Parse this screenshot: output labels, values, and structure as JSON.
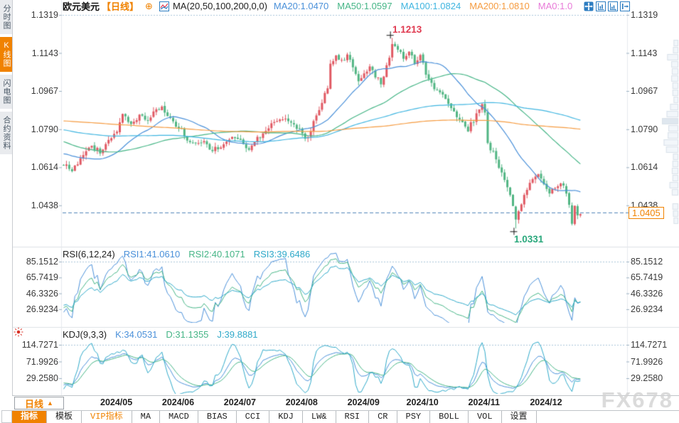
{
  "header": {
    "symbol": "欧元美元",
    "period": "【日线】",
    "plus_icon": "⊕",
    "ma_title": "MA(20,50,100,200,0,0)",
    "ma_items": [
      {
        "label": "MA20:1.0470",
        "color": "#4a90d9"
      },
      {
        "label": "MA50:1.0597",
        "color": "#45b586"
      },
      {
        "label": "MA100:1.0824",
        "color": "#3fb5e0"
      },
      {
        "label": "MA200:1.0810",
        "color": "#f59b40"
      },
      {
        "label": "MA0:1.0",
        "color": "#e87ad8"
      }
    ]
  },
  "sidebar": {
    "tabs": [
      {
        "label": "分时图",
        "active": false
      },
      {
        "label": "K线图",
        "active": true
      },
      {
        "label": "闪电图",
        "active": false
      },
      {
        "label": "合约资料",
        "active": false
      }
    ]
  },
  "price_axis": {
    "ticks": [
      "1.1319",
      "1.1143",
      "1.0967",
      "1.0790",
      "1.0614",
      "1.0438"
    ],
    "current": "1.0405"
  },
  "annotations": {
    "high": "1.1213",
    "low": "1.0331"
  },
  "rsi_panel": {
    "title": "RSI(6,12,24)",
    "values": [
      {
        "label": "RSI1:41.0610",
        "color": "#4a90d9"
      },
      {
        "label": "RSI2:40.1071",
        "color": "#45b586"
      },
      {
        "label": "RSI3:39.6486",
        "color": "#2fa9c9"
      }
    ],
    "ticks": [
      "85.1512",
      "65.7419",
      "46.3326",
      "26.9234"
    ]
  },
  "kdj_panel": {
    "title": "KDJ(9,3,3)",
    "values": [
      {
        "label": "K:34.0531",
        "color": "#4a90d9"
      },
      {
        "label": "D:31.1355",
        "color": "#45b586"
      },
      {
        "label": "J:39.8881",
        "color": "#2fa9c9"
      }
    ],
    "ticks": [
      "114.7271",
      "71.9926",
      "29.2580"
    ]
  },
  "xaxis": {
    "period_button": "日线",
    "period_arrow": "▲",
    "months": [
      "2024/05",
      "2024/06",
      "2024/07",
      "2024/08",
      "2024/09",
      "2024/10",
      "2024/11",
      "2024/12"
    ]
  },
  "toolbar": {
    "items": [
      {
        "label": "指标",
        "style": "active"
      },
      {
        "label": "模板",
        "style": "normal"
      },
      {
        "label": "VIP指标",
        "style": "vip"
      },
      {
        "label": "MA",
        "style": "normal"
      },
      {
        "label": "MACD",
        "style": "normal"
      },
      {
        "label": "BIAS",
        "style": "normal"
      },
      {
        "label": "CCI",
        "style": "normal"
      },
      {
        "label": "KDJ",
        "style": "normal"
      },
      {
        "label": "LW&",
        "style": "normal"
      },
      {
        "label": "RSI",
        "style": "normal"
      },
      {
        "label": "CR",
        "style": "normal"
      },
      {
        "label": "PSY",
        "style": "normal"
      },
      {
        "label": "BOLL",
        "style": "normal"
      },
      {
        "label": "VOL",
        "style": "normal"
      },
      {
        "label": "设置",
        "style": "normal"
      }
    ]
  },
  "watermark": "FX678",
  "chart_data": {
    "type": "candlestick",
    "symbol": "EUR/USD daily",
    "price_ticks": [
      1.1319,
      1.1143,
      1.0967,
      1.079,
      1.0614,
      1.0438
    ],
    "current_price": 1.0405,
    "ma_values": {
      "ma20": 1.047,
      "ma50": 1.0597,
      "ma100": 1.0824,
      "ma200": 1.081
    },
    "rsi_values": {
      "rsi1": 41.061,
      "rsi2": 40.1071,
      "rsi3": 39.6486
    },
    "kdj_values": {
      "k": 34.0531,
      "d": 31.1355,
      "j": 39.8881
    },
    "high_point": {
      "bar": 117,
      "price": 1.1213
    },
    "low_point": {
      "bar": 161,
      "price": 1.0331
    },
    "bars": 185,
    "month_start_bars": [
      20,
      42,
      64,
      86,
      108,
      129,
      151,
      173
    ],
    "close_anchors": [
      [
        -220,
        1.06
      ],
      [
        -200,
        1.075
      ],
      [
        -185,
        1.092
      ],
      [
        -170,
        1.104
      ],
      [
        -155,
        1.094
      ],
      [
        -140,
        1.08
      ],
      [
        -125,
        1.075
      ],
      [
        -110,
        1.082
      ],
      [
        -95,
        1.087
      ],
      [
        -80,
        1.08
      ],
      [
        -65,
        1.085
      ],
      [
        -50,
        1.087
      ],
      [
        -35,
        1.078
      ],
      [
        -20,
        1.066
      ],
      [
        -10,
        1.073
      ],
      [
        -5,
        1.064
      ],
      [
        0,
        1.0625
      ],
      [
        3,
        1.0605
      ],
      [
        7,
        1.066
      ],
      [
        10,
        1.0715
      ],
      [
        13,
        1.0685
      ],
      [
        16,
        1.074
      ],
      [
        19,
        1.0775
      ],
      [
        21,
        1.086
      ],
      [
        24,
        1.081
      ],
      [
        27,
        1.0855
      ],
      [
        30,
        1.083
      ],
      [
        33,
        1.088
      ],
      [
        35,
        1.089
      ],
      [
        38,
        1.0835
      ],
      [
        41,
        1.08
      ],
      [
        44,
        1.0745
      ],
      [
        47,
        1.072
      ],
      [
        50,
        1.074
      ],
      [
        53,
        1.069
      ],
      [
        56,
        1.0715
      ],
      [
        60,
        1.0745
      ],
      [
        63,
        1.073
      ],
      [
        66,
        1.0695
      ],
      [
        69,
        1.0745
      ],
      [
        72,
        1.0785
      ],
      [
        75,
        1.082
      ],
      [
        78,
        1.0845
      ],
      [
        81,
        1.081
      ],
      [
        84,
        1.079
      ],
      [
        86,
        1.0745
      ],
      [
        88,
        1.078
      ],
      [
        90,
        1.086
      ],
      [
        92,
        1.091
      ],
      [
        94,
        1.0985
      ],
      [
        95,
        1.109
      ],
      [
        97,
        1.113
      ],
      [
        99,
        1.1105
      ],
      [
        101,
        1.1135
      ],
      [
        103,
        1.108
      ],
      [
        105,
        1.101
      ],
      [
        107,
        1.1045
      ],
      [
        109,
        1.1075
      ],
      [
        111,
        1.1035
      ],
      [
        113,
        1.1005
      ],
      [
        115,
        1.108
      ],
      [
        117,
        1.118
      ],
      [
        119,
        1.116
      ],
      [
        121,
        1.112
      ],
      [
        123,
        1.115
      ],
      [
        125,
        1.11
      ],
      [
        127,
        1.1135
      ],
      [
        129,
        1.104
      ],
      [
        132,
        1.0985
      ],
      [
        135,
        1.094
      ],
      [
        138,
        1.088
      ],
      [
        141,
        1.084
      ],
      [
        144,
        1.079
      ],
      [
        147,
        1.0855
      ],
      [
        149,
        1.0905
      ],
      [
        150,
        1.087
      ],
      [
        151,
        1.072
      ],
      [
        153,
        1.068
      ],
      [
        155,
        1.062
      ],
      [
        157,
        1.056
      ],
      [
        159,
        1.049
      ],
      [
        161,
        1.0365
      ],
      [
        163,
        1.0445
      ],
      [
        165,
        1.051
      ],
      [
        167,
        1.056
      ],
      [
        169,
        1.0585
      ],
      [
        171,
        1.0545
      ],
      [
        173,
        1.0495
      ],
      [
        175,
        1.052
      ],
      [
        177,
        1.055
      ],
      [
        179,
        1.05
      ],
      [
        180,
        1.045
      ],
      [
        181,
        1.0355
      ],
      [
        182,
        1.044
      ],
      [
        183,
        1.039
      ],
      [
        184,
        1.0405
      ]
    ],
    "ma_periods": [
      20,
      50,
      100,
      200
    ],
    "ma_colors": [
      "#4a90d9",
      "#45b586",
      "#3fb5e0",
      "#f59b40"
    ],
    "rsi_periods": [
      6,
      12,
      24
    ],
    "rsi_axis": [
      85.1512,
      65.7419,
      46.3326,
      26.9234
    ],
    "kdj_params": [
      9,
      3,
      3
    ],
    "kdj_axis": [
      114.7271,
      71.9926,
      29.258
    ],
    "candle_up_color": "#e05862",
    "candle_down_color": "#51b583",
    "oscillator_colors": [
      "#4a90d9",
      "#45b586",
      "#2fa9c9"
    ]
  }
}
